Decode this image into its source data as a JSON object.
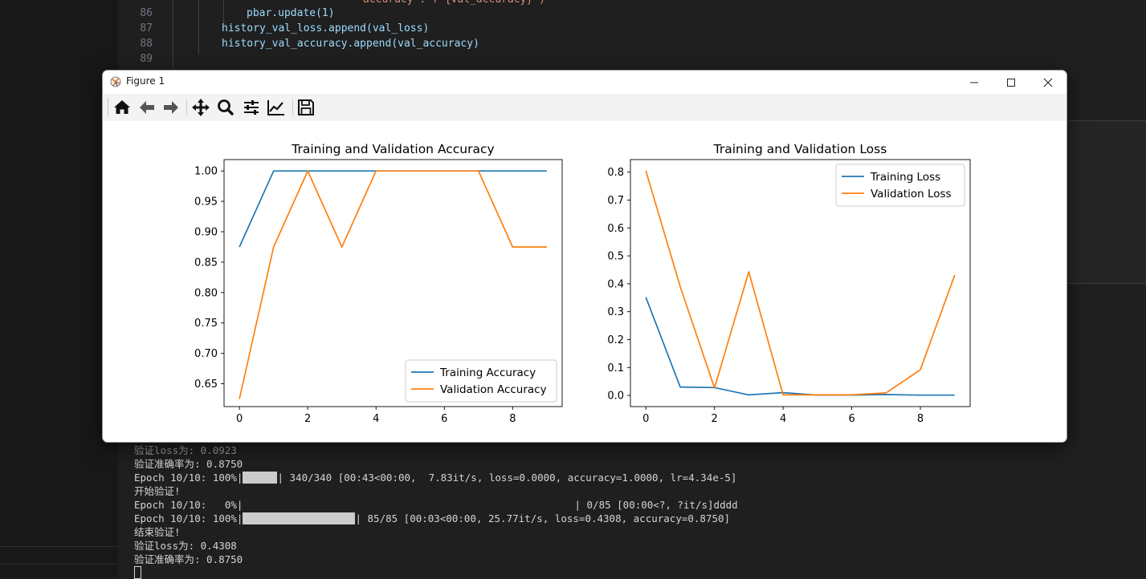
{
  "editor": {
    "partial_line": "accuracy\": f\"{val_accuracy}\")",
    "lines": [
      {
        "num": "86",
        "text": "pbar.update(1)"
      },
      {
        "num": "87",
        "text": "history_val_loss.append(val_loss)"
      },
      {
        "num": "88",
        "text": "history_val_accuracy.append(val_accuracy)"
      },
      {
        "num": "89",
        "text": ""
      }
    ]
  },
  "window": {
    "title": "Figure 1",
    "toolbar_icons": [
      "home-icon",
      "back-arrow-icon",
      "forward-arrow-icon",
      "pan-icon",
      "zoom-icon",
      "configure-subplots-icon",
      "edit-axis-icon",
      "save-icon"
    ]
  },
  "terminal": {
    "lines": [
      "验证loss为: 0.0923",
      "验证准确率为: 0.8750",
      "Epoch 10/10: 100%|",
      "开始验证!",
      "Epoch 10/10:   0%|",
      "Epoch 10/10: 100%|",
      "结束验证!",
      "验证loss为: 0.4308",
      "验证准确率为: 0.8750"
    ],
    "train_epoch_suffix": "| 340/340 [00:43<00:00,  7.83it/s, loss=0.0000, accuracy=1.0000, lr=4.34e-5]",
    "val_start_suffix": "| 0/85 [00:00<?, ?it/s]dddd",
    "val_end_suffix": "| 85/85 [00:03<00:00, 25.77it/s, loss=0.4308, accuracy=0.8750]"
  },
  "chart_data": [
    {
      "type": "line",
      "title": "Training and Validation Accuracy",
      "x": [
        0,
        1,
        2,
        3,
        4,
        5,
        6,
        7,
        8,
        9
      ],
      "xticks": [
        0,
        2,
        4,
        6,
        8
      ],
      "yticks": [
        0.65,
        0.7,
        0.75,
        0.8,
        0.85,
        0.9,
        0.95,
        1.0
      ],
      "ylim": [
        0.6125,
        1.0187
      ],
      "xlim": [
        -0.45,
        9.45
      ],
      "legend_position": "lower-right",
      "series": [
        {
          "name": "Training Accuracy",
          "color": "#1f77b4",
          "values": [
            0.875,
            1.0,
            1.0,
            1.0,
            1.0,
            1.0,
            1.0,
            1.0,
            1.0,
            1.0
          ]
        },
        {
          "name": "Validation Accuracy",
          "color": "#ff7f0e",
          "values": [
            0.625,
            0.875,
            1.0,
            0.875,
            1.0,
            1.0,
            1.0,
            1.0,
            0.875,
            0.875
          ]
        }
      ]
    },
    {
      "type": "line",
      "title": "Training and Validation Loss",
      "x": [
        0,
        1,
        2,
        3,
        4,
        5,
        6,
        7,
        8,
        9
      ],
      "xticks": [
        0,
        2,
        4,
        6,
        8
      ],
      "yticks": [
        0.0,
        0.1,
        0.2,
        0.3,
        0.4,
        0.5,
        0.6,
        0.7,
        0.8
      ],
      "ylim": [
        -0.04,
        0.845
      ],
      "xlim": [
        -0.45,
        9.45
      ],
      "legend_position": "upper-right",
      "series": [
        {
          "name": "Training Loss",
          "color": "#1f77b4",
          "values": [
            0.352,
            0.03,
            0.028,
            0.002,
            0.01,
            0.001,
            0.001,
            0.003,
            0.001,
            0.001
          ]
        },
        {
          "name": "Validation Loss",
          "color": "#ff7f0e",
          "values": [
            0.805,
            0.39,
            0.027,
            0.443,
            0.002,
            0.002,
            0.002,
            0.009,
            0.092,
            0.431
          ]
        }
      ]
    }
  ]
}
